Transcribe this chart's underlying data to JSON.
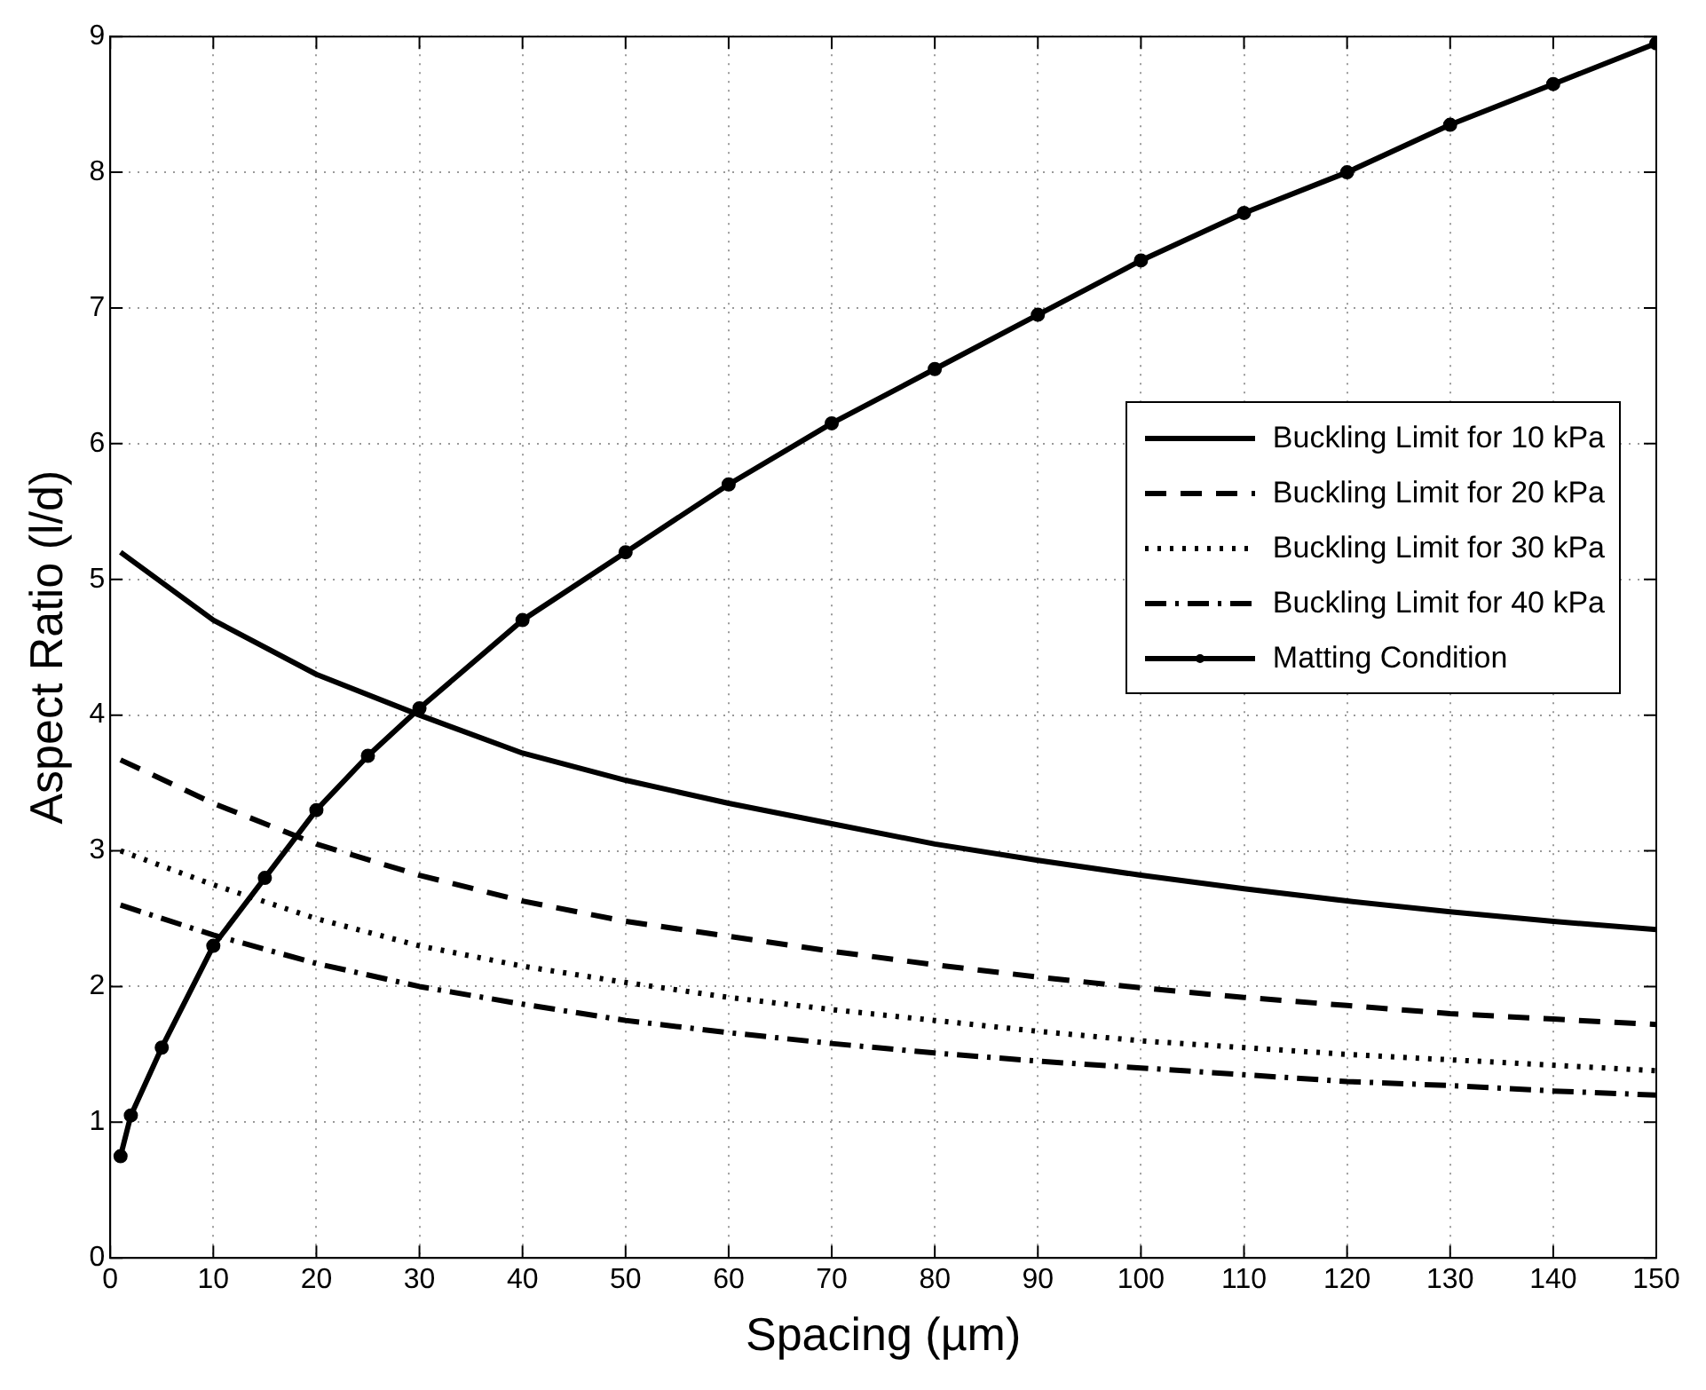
{
  "chart_data": {
    "type": "line",
    "xlabel": "Spacing (µm)",
    "ylabel": "Aspect Ratio (l/d)",
    "xlim": [
      0,
      150
    ],
    "xticks": [
      0,
      10,
      20,
      30,
      40,
      50,
      60,
      70,
      80,
      90,
      100,
      110,
      120,
      130,
      140,
      150
    ],
    "ylim": [
      0,
      9
    ],
    "yticks": [
      0,
      1,
      2,
      3,
      4,
      5,
      6,
      7,
      8,
      9
    ],
    "grid": true,
    "legend": "right",
    "series": [
      {
        "name": "Buckling Limit for 10 kPa",
        "color": "#000000",
        "line_style": "solid",
        "x": [
          1,
          10,
          20,
          30,
          40,
          50,
          60,
          70,
          80,
          90,
          100,
          110,
          120,
          130,
          140,
          150
        ],
        "values": [
          5.2,
          4.7,
          4.3,
          4.0,
          3.72,
          3.52,
          3.35,
          3.2,
          3.05,
          2.93,
          2.82,
          2.72,
          2.63,
          2.55,
          2.48,
          2.42
        ]
      },
      {
        "name": "Buckling Limit for 20 kPa",
        "color": "#000000",
        "line_style": "dashed",
        "x": [
          1,
          10,
          20,
          30,
          40,
          50,
          60,
          70,
          80,
          90,
          100,
          110,
          120,
          130,
          140,
          150
        ],
        "values": [
          3.67,
          3.35,
          3.05,
          2.82,
          2.63,
          2.48,
          2.37,
          2.26,
          2.16,
          2.07,
          1.99,
          1.92,
          1.86,
          1.8,
          1.76,
          1.72
        ]
      },
      {
        "name": "Buckling Limit for 30 kPa",
        "color": "#000000",
        "line_style": "dotted",
        "x": [
          1,
          10,
          20,
          30,
          40,
          50,
          60,
          70,
          80,
          90,
          100,
          110,
          120,
          130,
          140,
          150
        ],
        "values": [
          3.0,
          2.75,
          2.5,
          2.3,
          2.15,
          2.03,
          1.92,
          1.83,
          1.75,
          1.67,
          1.6,
          1.55,
          1.5,
          1.46,
          1.42,
          1.38
        ]
      },
      {
        "name": "Buckling Limit for 40 kPa",
        "color": "#000000",
        "line_style": "dashdot",
        "x": [
          1,
          10,
          20,
          30,
          40,
          50,
          60,
          70,
          80,
          90,
          100,
          110,
          120,
          130,
          140,
          150
        ],
        "values": [
          2.6,
          2.38,
          2.17,
          2.0,
          1.87,
          1.75,
          1.66,
          1.58,
          1.51,
          1.45,
          1.4,
          1.35,
          1.3,
          1.27,
          1.23,
          1.2
        ]
      },
      {
        "name": "Matting Condition",
        "color": "#000000",
        "line_style": "solid",
        "marker": "circle",
        "x": [
          1,
          2,
          5,
          10,
          15,
          20,
          25,
          30,
          40,
          50,
          60,
          70,
          80,
          90,
          100,
          110,
          120,
          130,
          140,
          150
        ],
        "values": [
          0.75,
          1.05,
          1.55,
          2.3,
          2.8,
          3.3,
          3.7,
          4.05,
          4.7,
          5.2,
          5.7,
          6.15,
          6.55,
          6.95,
          7.35,
          7.7,
          8.0,
          8.35,
          8.65,
          8.95
        ]
      }
    ]
  }
}
